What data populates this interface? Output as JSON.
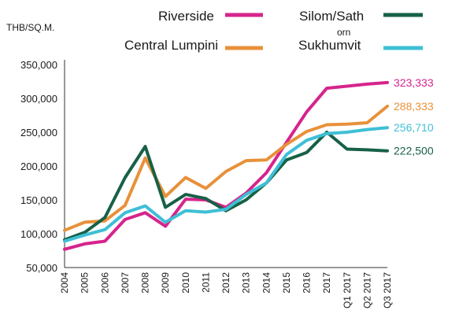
{
  "chart_data": {
    "type": "line",
    "ylabel": "THB/SQ.M.",
    "categories": [
      "2004",
      "2005",
      "2006",
      "2007",
      "2008",
      "2009",
      "2010",
      "2011",
      "2012",
      "2013",
      "2014",
      "2015",
      "2016",
      "2017",
      "Q1 2017",
      "Q2 2017",
      "Q3 2017"
    ],
    "y_ticks": [
      "50,000",
      "100,000",
      "150,000",
      "200,000",
      "250,000",
      "300,000",
      "350,000"
    ],
    "ylim": [
      50000,
      350000
    ],
    "grid": false,
    "legend_position": "top",
    "series": [
      {
        "name": "Riverside",
        "color": "#d6248c",
        "values": [
          77000,
          85000,
          89000,
          121000,
          131000,
          111000,
          151000,
          150000,
          139000,
          160000,
          190000,
          235000,
          280000,
          315000,
          318000,
          321000,
          323333
        ],
        "end_label": "323,333"
      },
      {
        "name": "Central Lumpini",
        "color": "#e8913a",
        "values": [
          105000,
          117000,
          119000,
          142000,
          212000,
          155000,
          183000,
          167000,
          192000,
          208000,
          209000,
          232000,
          251000,
          261000,
          262000,
          264000,
          288333
        ],
        "end_label": "288,333"
      },
      {
        "name": "Silom/Sathorn",
        "legend_label": "Silom/Sath",
        "legend_label_wrap": "orn",
        "color": "#176146",
        "values": [
          91000,
          102000,
          124000,
          183000,
          229000,
          139000,
          158000,
          152000,
          134000,
          150000,
          175000,
          209000,
          220000,
          250000,
          225000,
          224000,
          222500
        ],
        "end_label": "222,500"
      },
      {
        "name": "Sukhumvit",
        "color": "#3ebfd6",
        "values": [
          89000,
          98000,
          106000,
          131000,
          141000,
          117000,
          134000,
          132000,
          136000,
          158000,
          175000,
          217000,
          238000,
          248000,
          250000,
          254000,
          256710
        ],
        "end_label": "256,710"
      }
    ]
  }
}
